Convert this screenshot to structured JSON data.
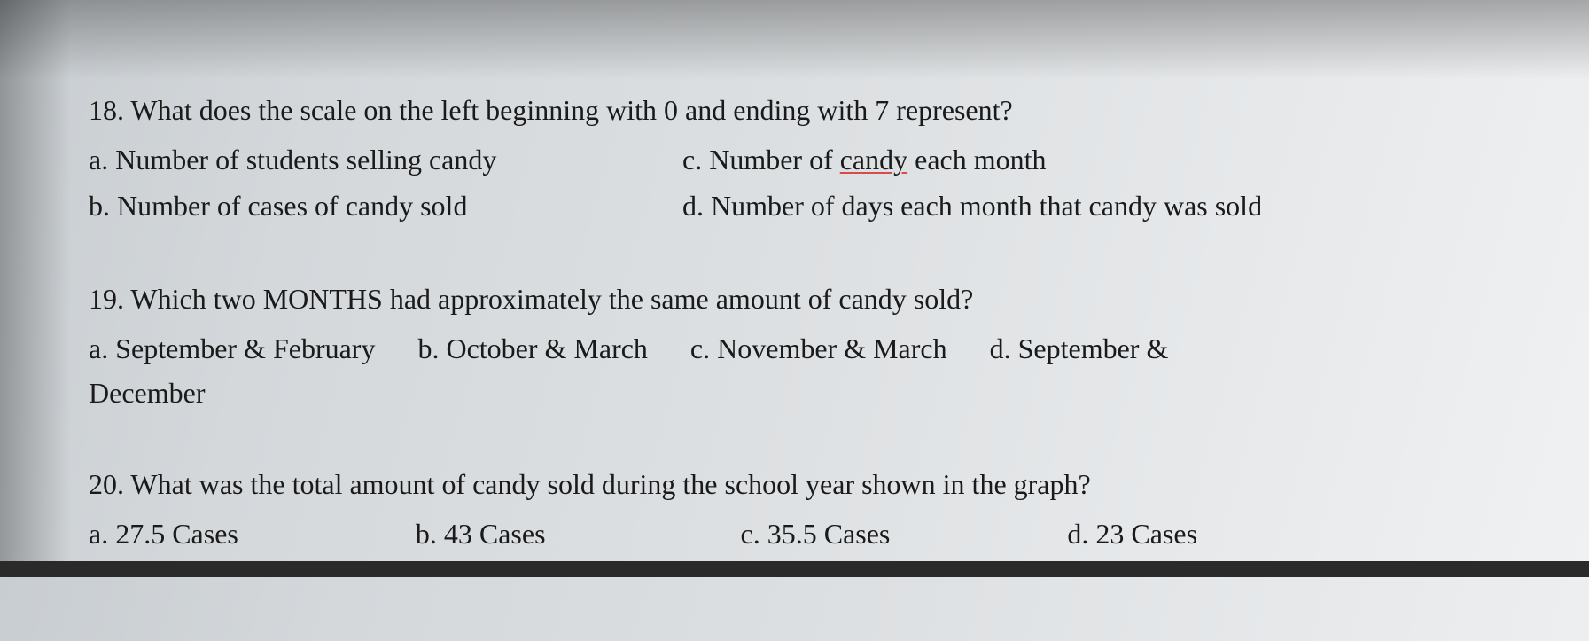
{
  "document": {
    "background_gradient": [
      "#c8cdd1",
      "#f0f1f3"
    ],
    "text_color": "#1a1a1a",
    "font_family": "Georgia, Times New Roman, serif",
    "base_font_size_pt": 24,
    "underline_color": "#d94a4a"
  },
  "questions": [
    {
      "number": "18.",
      "stem": "What does the scale on the left beginning with 0 and ending with 7 represent?",
      "layout": "two-col",
      "options": {
        "a": {
          "letter": "a.",
          "text": "Number of students selling candy"
        },
        "b": {
          "letter": "b.",
          "text": "Number of cases of candy sold"
        },
        "c": {
          "letter": "c.",
          "prefix": "Number of ",
          "underlined": "candy",
          "suffix": " each month"
        },
        "d": {
          "letter": "d.",
          "text": "Number of days each month that candy was sold"
        }
      }
    },
    {
      "number": "19.",
      "stem": "Which two MONTHS had approximately the same amount of candy sold?",
      "layout": "inline",
      "options": {
        "a": {
          "letter": "a.",
          "text": "September & February"
        },
        "b": {
          "letter": "b.",
          "text": "October & March"
        },
        "c": {
          "letter": "c.",
          "text": "November & March"
        },
        "d": {
          "letter": "d.",
          "text": "September &"
        }
      },
      "continuation": "December"
    },
    {
      "number": "20.",
      "stem": "What was the total amount of candy sold during the school year shown in the graph?",
      "layout": "inline-wide",
      "options": {
        "a": {
          "letter": "a.",
          "text": "27.5 Cases"
        },
        "b": {
          "letter": "b.",
          "text": "43 Cases"
        },
        "c": {
          "letter": "c.",
          "text": "35.5 Cases"
        },
        "d": {
          "letter": "d.",
          "text": "23 Cases"
        }
      }
    }
  ]
}
